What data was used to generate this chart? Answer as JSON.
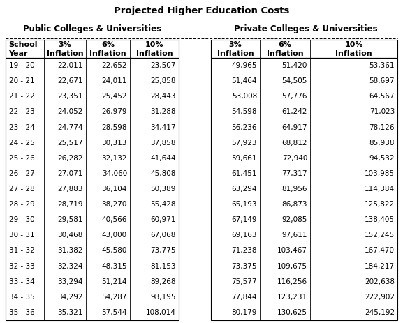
{
  "title": "Projected Higher Education Costs",
  "col1_header": "Public Colleges & Universities",
  "col2_header": "Private Colleges & Universities",
  "rows": [
    [
      "19 - 20",
      "22,011",
      "22,652",
      "23,507",
      "49,965",
      "51,420",
      "53,361"
    ],
    [
      "20 - 21",
      "22,671",
      "24,011",
      "25,858",
      "51,464",
      "54,505",
      "58,697"
    ],
    [
      "21 - 22",
      "23,351",
      "25,452",
      "28,443",
      "53,008",
      "57,776",
      "64,567"
    ],
    [
      "22 - 23",
      "24,052",
      "26,979",
      "31,288",
      "54,598",
      "61,242",
      "71,023"
    ],
    [
      "23 - 24",
      "24,774",
      "28,598",
      "34,417",
      "56,236",
      "64,917",
      "78,126"
    ],
    [
      "24 - 25",
      "25,517",
      "30,313",
      "37,858",
      "57,923",
      "68,812",
      "85,938"
    ],
    [
      "25 - 26",
      "26,282",
      "32,132",
      "41,644",
      "59,661",
      "72,940",
      "94,532"
    ],
    [
      "26 - 27",
      "27,071",
      "34,060",
      "45,808",
      "61,451",
      "77,317",
      "103,985"
    ],
    [
      "27 - 28",
      "27,883",
      "36,104",
      "50,389",
      "63,294",
      "81,956",
      "114,384"
    ],
    [
      "28 - 29",
      "28,719",
      "38,270",
      "55,428",
      "65,193",
      "86,873",
      "125,822"
    ],
    [
      "29 - 30",
      "29,581",
      "40,566",
      "60,971",
      "67,149",
      "92,085",
      "138,405"
    ],
    [
      "30 - 31",
      "30,468",
      "43,000",
      "67,068",
      "69,163",
      "97,611",
      "152,245"
    ],
    [
      "31 - 32",
      "31,382",
      "45,580",
      "73,775",
      "71,238",
      "103,467",
      "167,470"
    ],
    [
      "32 - 33",
      "32,324",
      "48,315",
      "81,153",
      "73,375",
      "109,675",
      "184,217"
    ],
    [
      "33 - 34",
      "33,294",
      "51,214",
      "89,268",
      "75,577",
      "116,256",
      "202,638"
    ],
    [
      "34 - 35",
      "34,292",
      "54,287",
      "98,195",
      "77,844",
      "123,231",
      "222,902"
    ],
    [
      "35 - 36",
      "35,321",
      "57,544",
      "108,014",
      "80,179",
      "130,625",
      "245,192"
    ]
  ],
  "bg_color": "#ffffff",
  "text_color": "#000000",
  "title_fontsize": 9.5,
  "header_fontsize": 8.5,
  "subheader_fontsize": 8,
  "data_fontsize": 7.5
}
